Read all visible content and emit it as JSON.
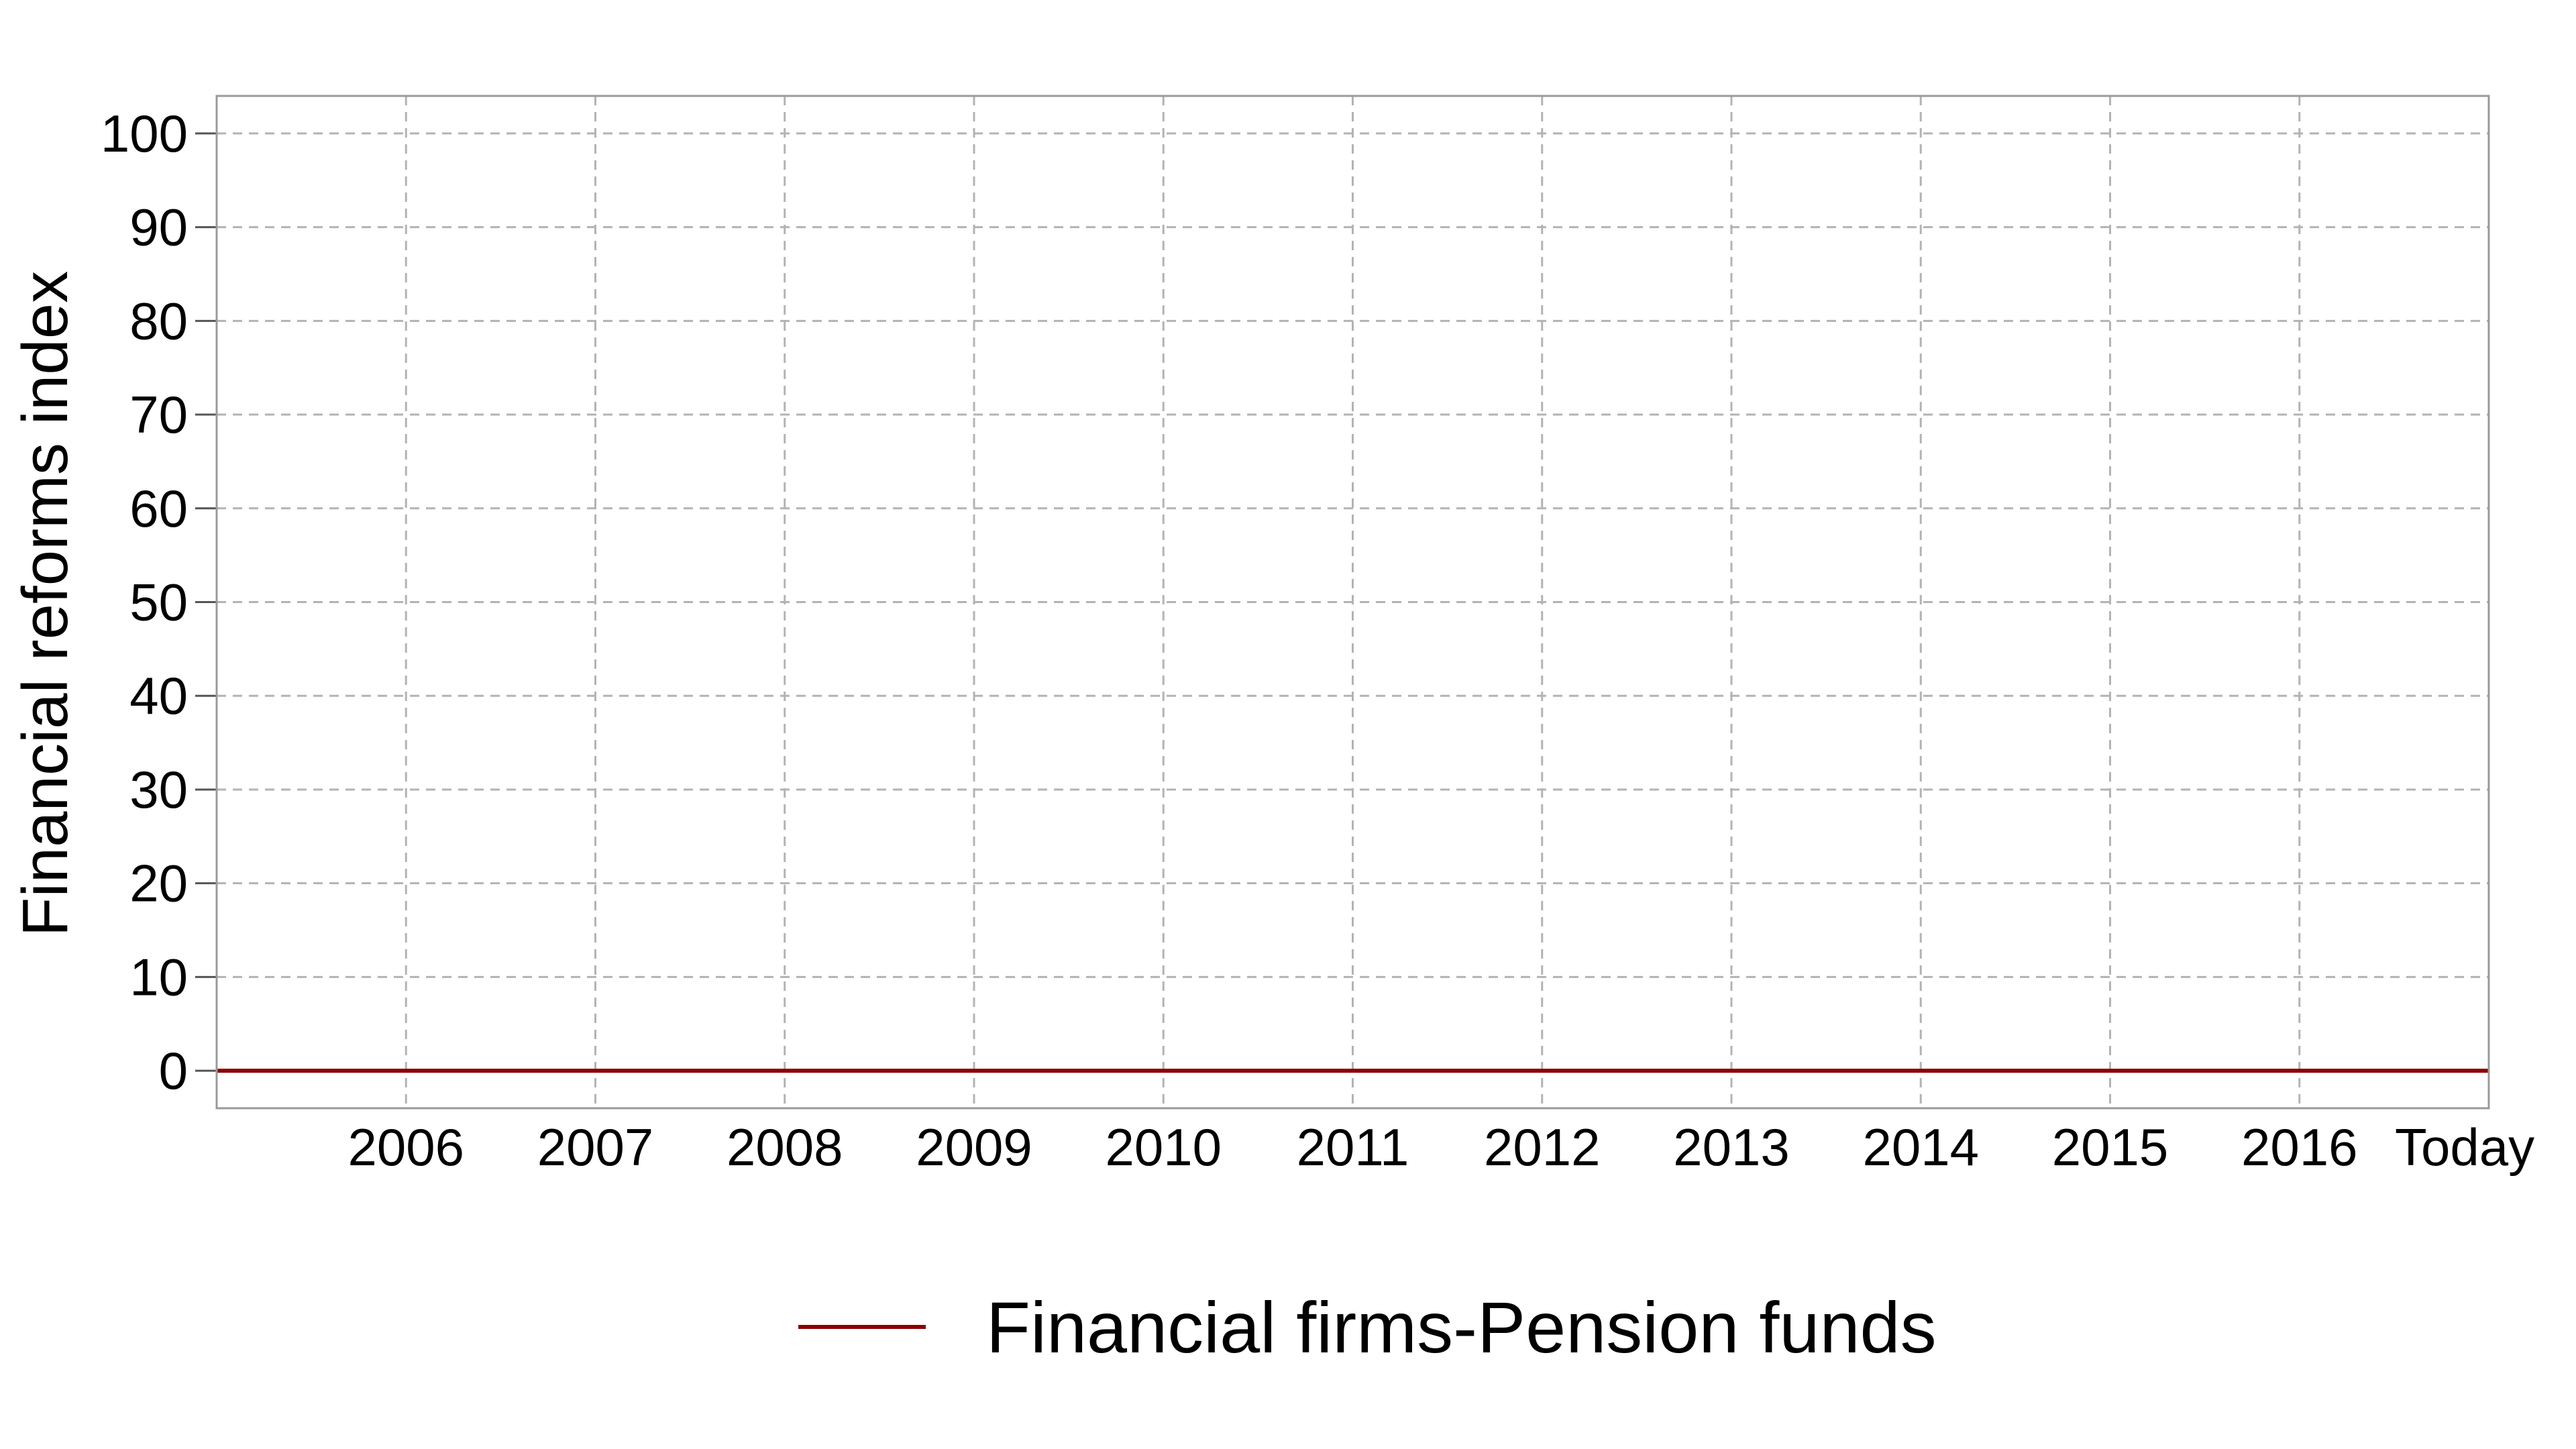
{
  "chart_data": {
    "type": "line",
    "title": "",
    "xlabel": "",
    "ylabel": "Financial reforms index",
    "x_ticks": [
      "2006",
      "2007",
      "2008",
      "2009",
      "2010",
      "2011",
      "2012",
      "2013",
      "2014",
      "2015",
      "2016",
      "Today"
    ],
    "y_ticks": [
      0,
      10,
      20,
      30,
      40,
      50,
      60,
      70,
      80,
      90,
      100
    ],
    "ylim": [
      -4,
      104
    ],
    "xlim": [
      2005,
      2017
    ],
    "grid": true,
    "legend_position": "bottom-center",
    "series": [
      {
        "name": "Financial firms-Pension funds",
        "color": "#8b0000",
        "x": [
          2005,
          2006,
          2007,
          2008,
          2009,
          2010,
          2011,
          2012,
          2013,
          2014,
          2015,
          2016,
          2017
        ],
        "values": [
          0,
          0,
          0,
          0,
          0,
          0,
          0,
          0,
          0,
          0,
          0,
          0,
          0
        ]
      }
    ]
  }
}
